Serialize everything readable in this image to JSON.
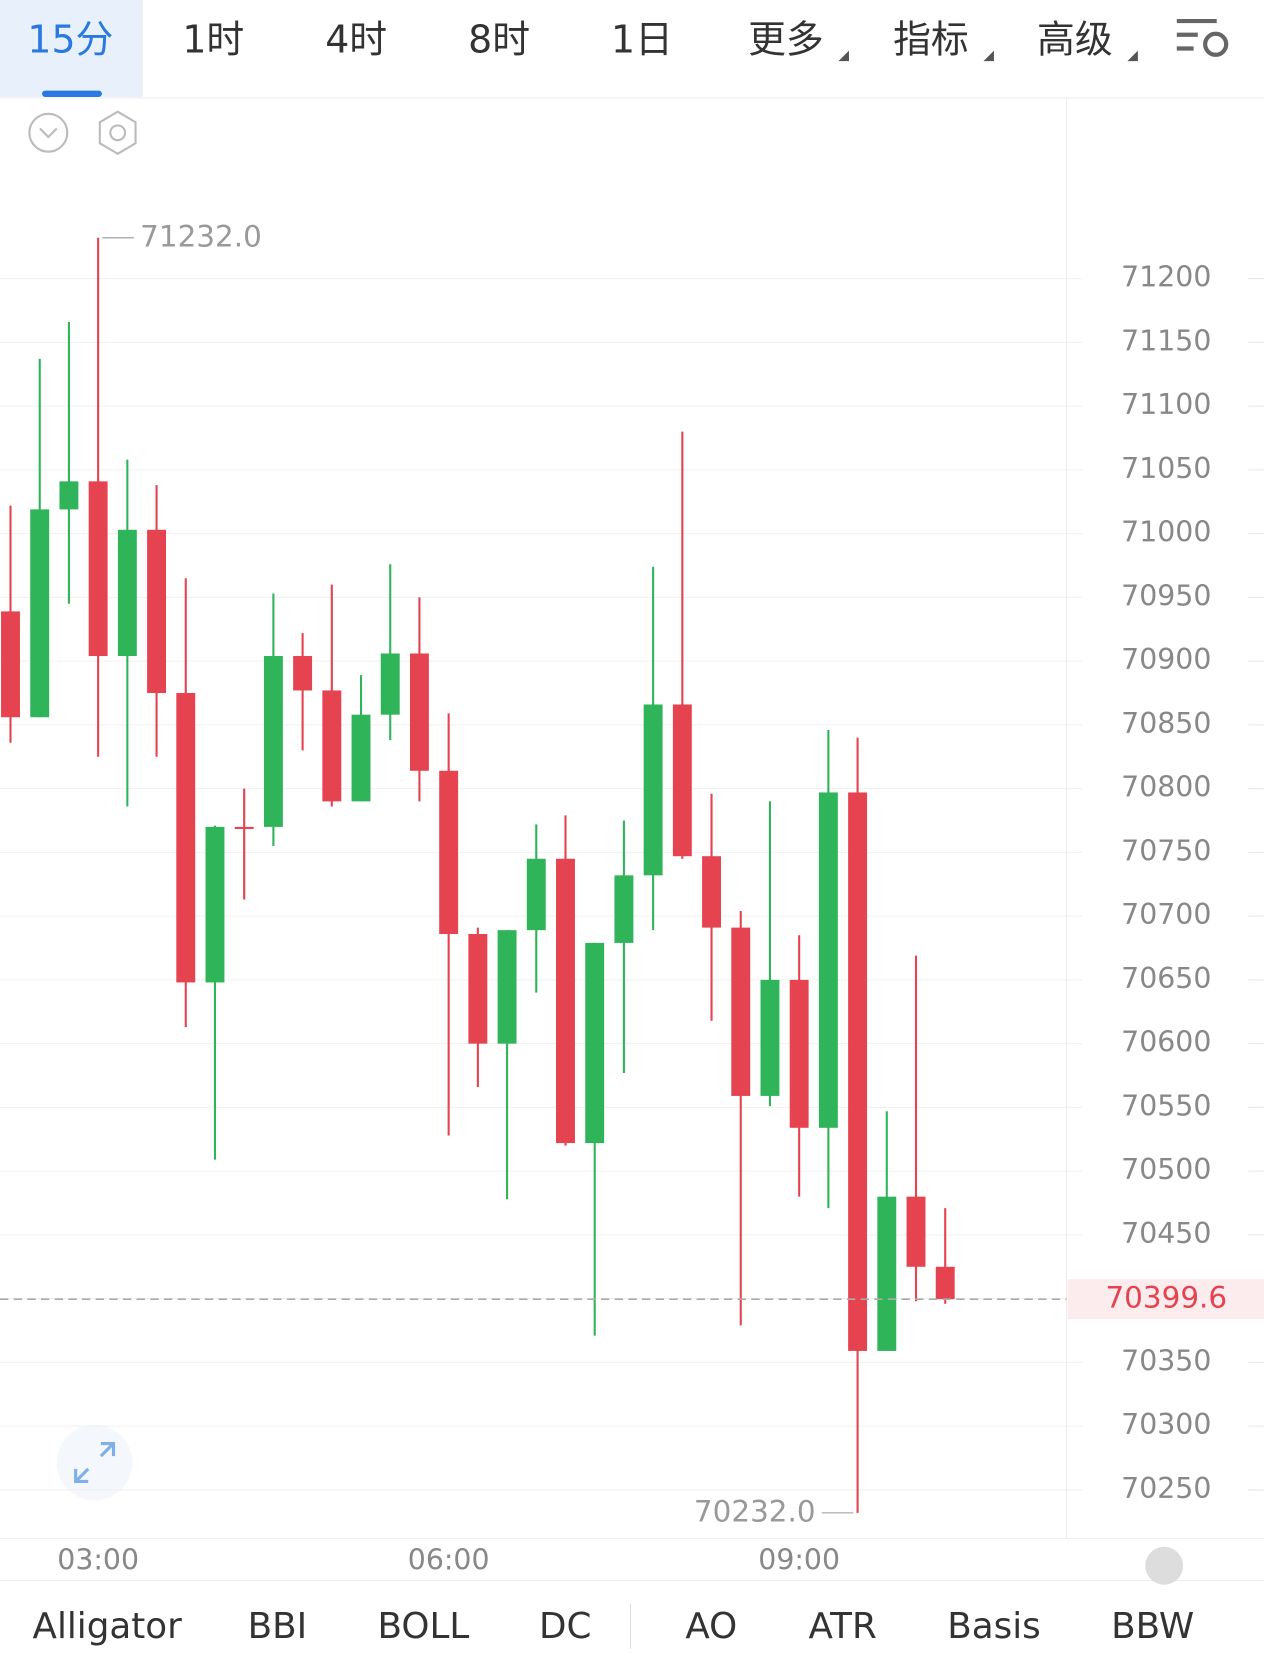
{
  "ui": {
    "tabs": [
      "15分",
      "1时",
      "4时",
      "8时",
      "1日",
      "更多",
      "指标",
      "高级"
    ],
    "indicators": [
      "Alligator",
      "BBI",
      "BOLL",
      "DC",
      "AO",
      "ATR",
      "Basis",
      "BBW"
    ]
  },
  "chart_data": {
    "type": "candlestick",
    "categories": [
      null,
      null,
      null,
      "03:00",
      null,
      null,
      null,
      null,
      null,
      null,
      null,
      null,
      null,
      null,
      null,
      "06:00",
      null,
      null,
      null,
      null,
      null,
      null,
      null,
      null,
      null,
      null,
      null,
      "09:00",
      null,
      null,
      null,
      null,
      null
    ],
    "open": [
      70939,
      70856,
      71019,
      71041,
      70904,
      71003,
      70875,
      70648,
      70770,
      70770,
      70904,
      70877,
      70790,
      70858,
      70906,
      70814,
      70686,
      70600,
      70689,
      70745,
      70522,
      70679,
      70732,
      70866,
      70747,
      70691,
      70559,
      70650,
      70534,
      70797,
      70359,
      70480,
      70425
    ],
    "high": [
      71022,
      71137,
      71166,
      71232,
      71058,
      71038,
      70965,
      70771,
      70800,
      70953,
      70922,
      70960,
      70889,
      70976,
      70950,
      70859,
      70691,
      70689,
      70772,
      70779,
      70679,
      70775,
      70974,
      71080,
      70796,
      70704,
      70790,
      70685,
      70846,
      70840,
      70547,
      70669,
      70471
    ],
    "low": [
      70836,
      70856,
      70945,
      70825,
      70786,
      70825,
      70613,
      70509,
      70713,
      70755,
      70830,
      70786,
      70790,
      70838,
      70790,
      70528,
      70566,
      70478,
      70640,
      70520,
      70371,
      70577,
      70689,
      70745,
      70618,
      70379,
      70551,
      70480,
      70471,
      70232,
      70359,
      70398,
      70396
    ],
    "close": [
      70856,
      71019,
      71041,
      70904,
      71003,
      70875,
      70648,
      70770,
      70769,
      70904,
      70877,
      70790,
      70858,
      70906,
      70814,
      70686,
      70600,
      70689,
      70745,
      70522,
      70679,
      70732,
      70866,
      70747,
      70691,
      70559,
      70650,
      70534,
      70797,
      70359,
      70480,
      70425,
      70399.6
    ],
    "up_color": "#2fb45a",
    "down_color": "#e5434f",
    "ylim": [
      70212,
      71340
    ],
    "yticks": [
      70250,
      70300,
      70350,
      70400,
      70450,
      70500,
      70550,
      70600,
      70650,
      70700,
      70750,
      70800,
      70850,
      70900,
      70950,
      71000,
      71050,
      71100,
      71150,
      71200
    ],
    "grid": true,
    "high_marker": {
      "value": 71232,
      "label": "71232.0"
    },
    "low_marker": {
      "value": 70232,
      "label": "70232.0"
    },
    "last_price": {
      "value": 70399.6,
      "label": "70399.6"
    }
  }
}
